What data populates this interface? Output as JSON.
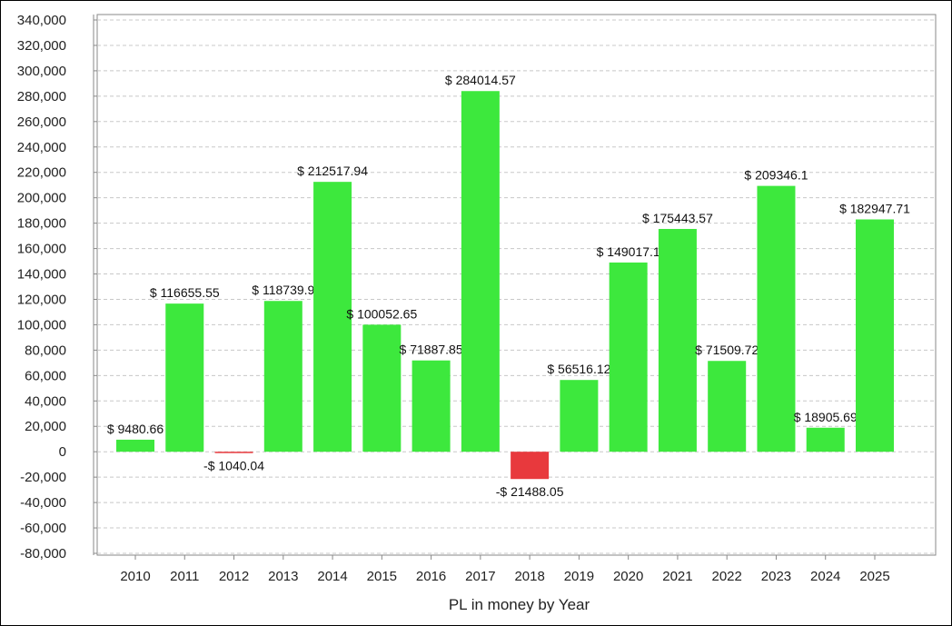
{
  "chart_data": {
    "type": "bar",
    "title": "",
    "xlabel": "PL in money by Year",
    "ylabel": "",
    "ylim": [
      -80000,
      340000
    ],
    "ytick_step": 20000,
    "grid": true,
    "categories": [
      "2010",
      "2011",
      "2012",
      "2013",
      "2014",
      "2015",
      "2016",
      "2017",
      "2018",
      "2019",
      "2020",
      "2021",
      "2022",
      "2023",
      "2024",
      "2025"
    ],
    "values": [
      9480.66,
      116655.55,
      -1040.04,
      118739.9,
      212517.94,
      100052.65,
      71887.85,
      284014.57,
      -21488.05,
      56516.12,
      149017.1,
      175443.57,
      71509.72,
      209346.1,
      18905.69,
      182947.71
    ],
    "labels": [
      "$ 9480.66",
      "$ 116655.55",
      "-$ 1040.04",
      "$ 118739.9",
      "$ 212517.94",
      "$ 100052.65",
      "$ 71887.85",
      "$ 284014.57",
      "-$ 21488.05",
      "$ 56516.12",
      "$ 149017.1",
      "$ 175443.57",
      "$ 71509.72",
      "$ 209346.1",
      "$ 18905.69",
      "$ 182947.71"
    ],
    "colors": {
      "positive": "#3de83d",
      "negative": "#e8393d",
      "grid": "#c8c8c8"
    }
  }
}
